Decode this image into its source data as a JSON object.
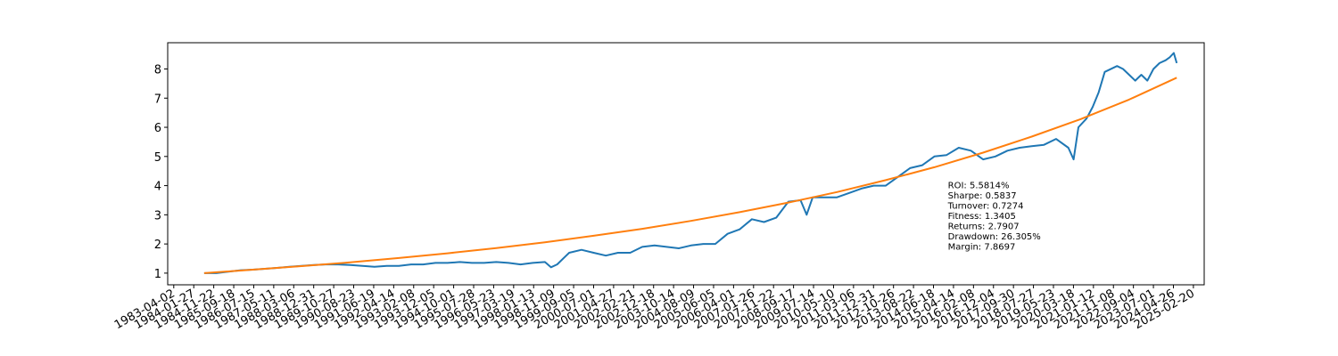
{
  "chart_data": {
    "type": "line",
    "title": "",
    "xlabel": "",
    "ylabel": "",
    "xlim": [
      "1983-01-01",
      "2025-08-01"
    ],
    "ylim": [
      0.6,
      8.9
    ],
    "yticks": [
      1,
      2,
      3,
      4,
      5,
      6,
      7,
      8
    ],
    "xticks": [
      "1983-04-02",
      "1984-01-27",
      "1984-11-22",
      "1985-09-18",
      "1986-07-15",
      "1987-05-11",
      "1988-03-06",
      "1988-12-31",
      "1989-10-27",
      "1990-08-23",
      "1991-06-19",
      "1992-04-14",
      "1993-02-08",
      "1993-12-05",
      "1994-10-01",
      "1995-07-28",
      "1996-05-23",
      "1997-03-19",
      "1998-01-13",
      "1998-11-09",
      "1999-09-05",
      "2000-07-01",
      "2001-04-27",
      "2002-02-21",
      "2002-12-18",
      "2003-10-14",
      "2004-08-09",
      "2005-06-05",
      "2006-04-01",
      "2007-01-26",
      "2007-11-22",
      "2008-09-17",
      "2009-07-14",
      "2010-05-10",
      "2011-03-06",
      "2011-12-31",
      "2012-10-26",
      "2013-08-22",
      "2014-06-18",
      "2015-04-14",
      "2016-02-08",
      "2016-12-04",
      "2017-09-30",
      "2018-07-27",
      "2019-05-23",
      "2020-03-18",
      "2021-01-12",
      "2021-11-08",
      "2022-09-04",
      "2023-07-01",
      "2024-04-26",
      "2025-02-20"
    ],
    "grid": false,
    "series": [
      {
        "color": "#1f77b4",
        "x": [
          "1984-07-01",
          "1985-01-01",
          "1985-07-01",
          "1986-01-01",
          "1986-07-01",
          "1987-01-01",
          "1987-07-01",
          "1988-01-01",
          "1988-07-01",
          "1989-01-01",
          "1989-07-01",
          "1990-01-01",
          "1990-07-01",
          "1991-01-01",
          "1991-07-01",
          "1992-01-01",
          "1992-07-01",
          "1993-01-01",
          "1993-07-01",
          "1994-01-01",
          "1994-07-01",
          "1995-01-01",
          "1995-07-01",
          "1996-01-01",
          "1996-07-01",
          "1997-01-01",
          "1997-07-01",
          "1998-01-01",
          "1998-07-01",
          "1998-10-01",
          "1999-01-01",
          "1999-07-01",
          "2000-01-01",
          "2000-07-01",
          "2001-01-01",
          "2001-07-01",
          "2002-01-01",
          "2002-07-01",
          "2003-01-01",
          "2003-07-01",
          "2004-01-01",
          "2004-07-01",
          "2005-01-01",
          "2005-07-01",
          "2006-01-01",
          "2006-07-01",
          "2007-01-01",
          "2007-07-01",
          "2008-01-01",
          "2008-07-01",
          "2009-01-01",
          "2009-04-01",
          "2009-07-01",
          "2010-01-01",
          "2010-07-01",
          "2011-01-01",
          "2011-07-01",
          "2012-01-01",
          "2012-07-01",
          "2013-01-01",
          "2013-07-01",
          "2014-01-01",
          "2014-07-01",
          "2015-01-01",
          "2015-07-01",
          "2016-01-01",
          "2016-07-01",
          "2017-01-01",
          "2017-07-01",
          "2018-01-01",
          "2018-07-01",
          "2019-01-01",
          "2019-07-01",
          "2020-01-01",
          "2020-03-20",
          "2020-06-01",
          "2020-10-01",
          "2021-01-01",
          "2021-04-01",
          "2021-07-01",
          "2022-01-01",
          "2022-04-01",
          "2022-07-01",
          "2022-10-01",
          "2023-01-01",
          "2023-04-01",
          "2023-07-01",
          "2023-10-01",
          "2024-01-01",
          "2024-03-01",
          "2024-05-01",
          "2024-06-15"
        ],
        "y": [
          1.0,
          1.0,
          1.05,
          1.1,
          1.12,
          1.15,
          1.18,
          1.22,
          1.25,
          1.28,
          1.3,
          1.3,
          1.28,
          1.25,
          1.22,
          1.25,
          1.25,
          1.3,
          1.3,
          1.35,
          1.35,
          1.38,
          1.35,
          1.35,
          1.38,
          1.35,
          1.3,
          1.35,
          1.38,
          1.2,
          1.3,
          1.7,
          1.8,
          1.7,
          1.6,
          1.7,
          1.7,
          1.9,
          1.95,
          1.9,
          1.85,
          1.95,
          2.0,
          2.0,
          2.35,
          2.5,
          2.85,
          2.75,
          2.9,
          3.45,
          3.5,
          3.0,
          3.6,
          3.6,
          3.6,
          3.75,
          3.9,
          4.0,
          4.0,
          4.3,
          4.6,
          4.7,
          5.0,
          5.05,
          5.3,
          5.2,
          4.9,
          5.0,
          5.2,
          5.3,
          5.35,
          5.4,
          5.6,
          5.3,
          4.9,
          6.0,
          6.3,
          6.7,
          7.2,
          7.9,
          8.1,
          8.0,
          7.8,
          7.6,
          7.8,
          7.6,
          8.0,
          8.2,
          8.3,
          8.4,
          8.55,
          8.2
        ]
      },
      {
        "color": "#ff7f0e",
        "x": [
          "1984-07-01",
          "1986-07-01",
          "1988-07-01",
          "1990-07-01",
          "1992-07-01",
          "1994-07-01",
          "1996-07-01",
          "1998-07-01",
          "2000-07-01",
          "2002-07-01",
          "2004-07-01",
          "2006-07-01",
          "2008-07-01",
          "2010-07-01",
          "2012-07-01",
          "2014-07-01",
          "2016-07-01",
          "2018-07-01",
          "2020-07-01",
          "2022-07-01",
          "2024-06-15"
        ],
        "y": [
          1.0,
          1.12,
          1.24,
          1.37,
          1.52,
          1.68,
          1.86,
          2.06,
          2.28,
          2.52,
          2.79,
          3.09,
          3.42,
          3.78,
          4.19,
          4.63,
          5.13,
          5.68,
          6.28,
          6.95,
          7.7
        ]
      }
    ],
    "annotation": [
      "ROI: 5.5814%",
      "Sharpe: 0.5837",
      "Turnover: 0.7274",
      "Fitness: 1.3405",
      "Returns: 2.7907",
      "Drawdown: 26.305%",
      "Margin: 7.8697"
    ],
    "annotation_anchor": "2015-01-20"
  }
}
